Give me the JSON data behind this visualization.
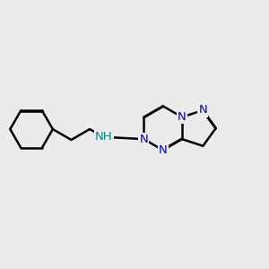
{
  "background_color": "#ebebeb",
  "bond_color": "#000000",
  "n_color": "#0000dd",
  "nh_color": "#008b8b",
  "lw": 1.8,
  "fs": 9.5,
  "doff": 0.012,
  "xlim": [
    -2.0,
    5.5
  ],
  "ylim": [
    -1.8,
    2.2
  ]
}
